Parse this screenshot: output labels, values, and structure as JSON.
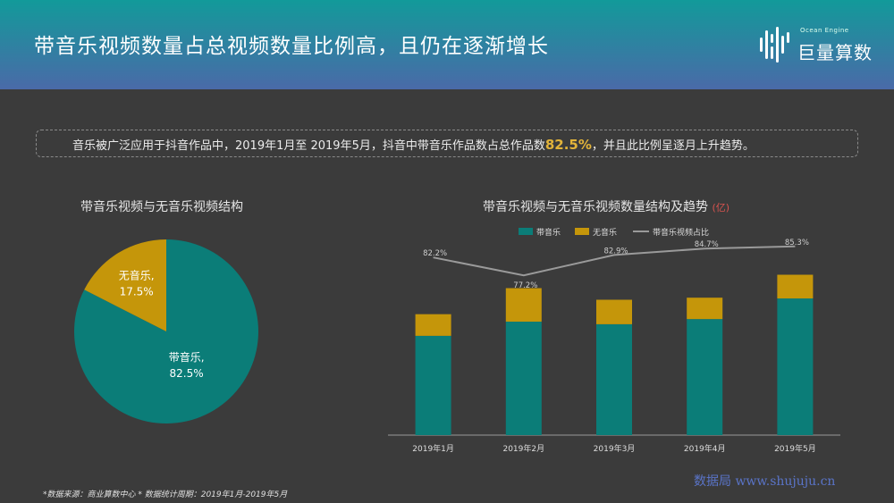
{
  "header": {
    "title": "带音乐视频数量占总视频数量比例高，且仍在逐渐增长",
    "logo_sub": "Ocean Engine",
    "logo_text": "巨量算数"
  },
  "summary": {
    "before": "音乐被广泛应用于抖音作品中，2019年1月至 2019年5月，抖音中带音乐作品数占总作品数",
    "highlight": "82.5%",
    "after": "，并且此比例呈逐月上升趋势。"
  },
  "colors": {
    "music": "#0b7d78",
    "no_music": "#c5960a",
    "ratio_line": "#9a9a9a",
    "highlight": "#e2b33a"
  },
  "chart_data": [
    {
      "type": "pie",
      "title": "带音乐视频与无音乐视频结构",
      "slices": [
        {
          "label": "带音乐,",
          "value": 82.5,
          "display": "82.5%"
        },
        {
          "label": "无音乐,",
          "value": 17.5,
          "display": "17.5%"
        }
      ]
    },
    {
      "type": "bar",
      "title": "带音乐视频与无音乐视频数量结构及趋势",
      "unit": "(亿)",
      "stacked": true,
      "categories": [
        "2019年1月",
        "2019年2月",
        "2019年3月",
        "2019年4月",
        "2019年5月"
      ],
      "series": [
        {
          "name": "带音乐",
          "values": [
            3.85,
            4.4,
            4.3,
            4.5,
            5.3
          ]
        },
        {
          "name": "无音乐",
          "values": [
            0.84,
            1.3,
            0.95,
            0.83,
            0.92
          ]
        }
      ],
      "line": {
        "name": "带音乐视频占比",
        "values": [
          82.2,
          77.2,
          82.9,
          84.7,
          85.3
        ],
        "labels": [
          "82.2%",
          "77.2%",
          "82.9%",
          "84.7%",
          "85.3%"
        ]
      },
      "legend": "top-center"
    }
  ],
  "footnote": "*数据来源：商业算数中心 * 数据统计周期：2019年1月-2019年5月",
  "watermark": "数据局  www.shujuju.cn"
}
